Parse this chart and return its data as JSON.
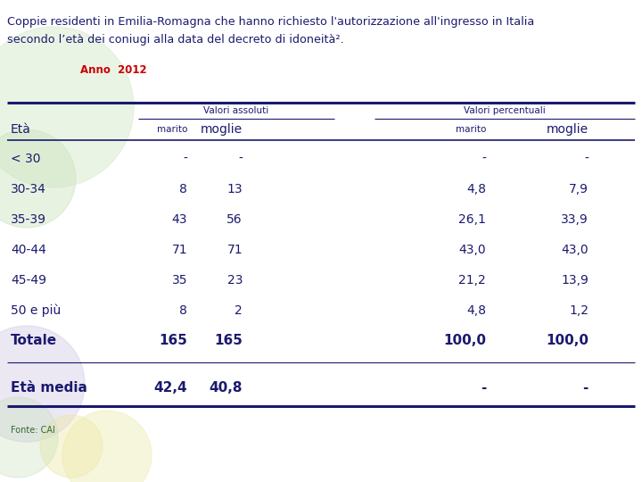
{
  "title_line1": "Coppie residenti in Emilia-Romagna che hanno richiesto l'autorizzazione all'ingresso in Italia",
  "title_line2": "secondo l’età dei coniugi alla data del decreto di idoneità².",
  "anno_label": "Anno  2012",
  "header_group1": "Valori assoluti",
  "header_group2": "Valori percentuali",
  "col_eta": "Età",
  "col_marito": "marito",
  "col_moglie": "moglie",
  "rows": [
    {
      "eta": "< 30",
      "ass_marito": "-",
      "ass_moglie": "-",
      "pct_marito": "-",
      "pct_moglie": "-"
    },
    {
      "eta": "30-34",
      "ass_marito": "8",
      "ass_moglie": "13",
      "pct_marito": "4,8",
      "pct_moglie": "7,9"
    },
    {
      "eta": "35-39",
      "ass_marito": "43",
      "ass_moglie": "56",
      "pct_marito": "26,1",
      "pct_moglie": "33,9"
    },
    {
      "eta": "40-44",
      "ass_marito": "71",
      "ass_moglie": "71",
      "pct_marito": "43,0",
      "pct_moglie": "43,0"
    },
    {
      "eta": "45-49",
      "ass_marito": "35",
      "ass_moglie": "23",
      "pct_marito": "21,2",
      "pct_moglie": "13,9"
    },
    {
      "eta": "50 e più",
      "ass_marito": "8",
      "ass_moglie": "2",
      "pct_marito": "4,8",
      "pct_moglie": "1,2"
    },
    {
      "eta": "Totale",
      "ass_marito": "165",
      "ass_moglie": "165",
      "pct_marito": "100,0",
      "pct_moglie": "100,0"
    }
  ],
  "footer_row": {
    "eta": "Età media",
    "ass_marito": "42,4",
    "ass_moglie": "40,8",
    "pct_marito": "-",
    "pct_moglie": "-"
  },
  "fonte": "Fonte: CAI",
  "bg_color": "#ffffff",
  "title_color": "#1a1a6e",
  "anno_color": "#cc0000",
  "table_text_color": "#1a1a6e",
  "header_color": "#1a1a6e",
  "line_color": "#1a1a6e",
  "fonte_color": "#336633"
}
